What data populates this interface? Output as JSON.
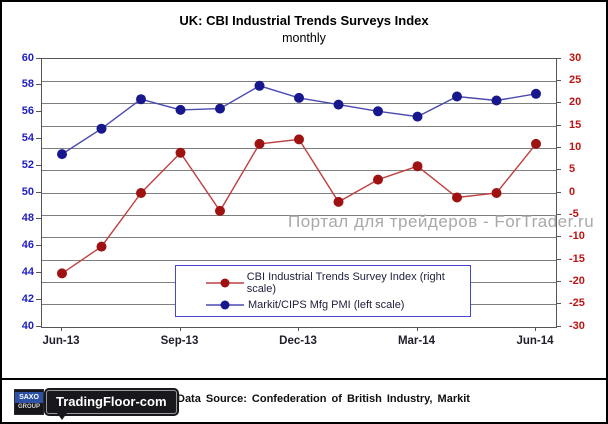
{
  "title": "UK: CBI Industrial Trends Surveys Index",
  "subtitle": "monthly",
  "watermark": "Портал для трейдеров - ForTrader.ru",
  "legend": {
    "entries": [
      {
        "label": "CBI Industrial Trends Survey Index (right scale)"
      },
      {
        "label": "Markit/CIPS Mfg PMI (left scale)"
      }
    ]
  },
  "footer": {
    "logo_saxo_top": "SAXO",
    "logo_saxo_bottom": "GROUP",
    "logo_tradingfloor": "TradingFloor-com",
    "data_source": "Data Source: Confederation of British Industry, Markit"
  },
  "colors": {
    "cbi_line": "#bf4040",
    "cbi_marker": "#9e1212",
    "pmi_line": "#4a4ab0",
    "pmi_marker": "#18188e",
    "grid": "#7f7f7f",
    "left_axis_text": "#2020bf",
    "right_axis_text": "#bf1414",
    "legend_border": "#4646c8"
  },
  "chart_data": {
    "type": "line",
    "title": "UK: CBI Industrial Trends Surveys Index",
    "subtitle": "monthly",
    "months": [
      "Jun-13",
      "Jul-13",
      "Aug-13",
      "Sep-13",
      "Oct-13",
      "Nov-13",
      "Dec-13",
      "Jan-14",
      "Feb-14",
      "Mar-14",
      "Apr-14",
      "May-14",
      "Jun-14"
    ],
    "x_tick_labels": [
      "Jun-13",
      "Sep-13",
      "Dec-13",
      "Mar-14",
      "Jun-14"
    ],
    "left_axis": {
      "min": 40,
      "max": 60,
      "step": 2,
      "ticks": [
        60,
        58,
        56,
        54,
        52,
        50,
        48,
        46,
        44,
        42,
        40
      ]
    },
    "right_axis": {
      "min": -30,
      "max": 30,
      "step": 5,
      "ticks": [
        30,
        25,
        20,
        15,
        10,
        5,
        0,
        -5,
        -10,
        -15,
        -20,
        -25,
        -30
      ]
    },
    "grid": "horizontal-only",
    "legend_position": "inside-bottom-center",
    "series": [
      {
        "name": "CBI Industrial Trends Survey Index (right scale)",
        "axis": "right",
        "values": [
          -18,
          -12,
          0,
          9,
          -4,
          11,
          12,
          -2,
          3,
          6,
          -1,
          0,
          11
        ]
      },
      {
        "name": "Markit/CIPS Mfg PMI (left scale)",
        "axis": "left",
        "values": [
          52.9,
          54.8,
          57.0,
          56.2,
          56.3,
          58.0,
          57.1,
          56.6,
          56.1,
          55.7,
          57.2,
          56.9,
          57.4
        ]
      }
    ]
  }
}
